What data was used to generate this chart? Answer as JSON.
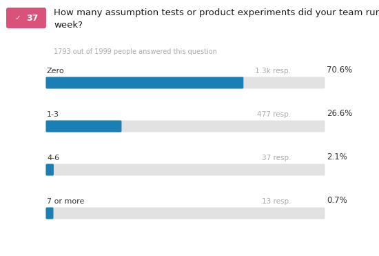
{
  "question_number": "37",
  "question_text": "How many assumption tests or product experiments did your team run last\nweek?",
  "subtitle": "1793 out of 1999 people answered this question",
  "categories": [
    "Zero",
    "1-3",
    "4-6",
    "7 or more"
  ],
  "percentages": [
    70.6,
    26.6,
    2.1,
    0.7
  ],
  "resp_labels": [
    "1.3k resp.",
    "477 resp.",
    "37 resp.",
    "13 resp."
  ],
  "pct_labels": [
    "70.6%",
    "26.6%",
    "2.1%",
    "0.7%"
  ],
  "bar_color": "#1a7fb5",
  "bg_bar_color": "#e2e2e2",
  "background_color": "#ffffff",
  "badge_color": "#d9527a",
  "badge_text_color": "#ffffff",
  "title_color": "#1a1a1a",
  "subtitle_color": "#aaaaaa",
  "label_color": "#333333",
  "resp_color": "#aaaaaa",
  "pct_color": "#333333",
  "fig_width": 5.5,
  "fig_height": 3.71
}
